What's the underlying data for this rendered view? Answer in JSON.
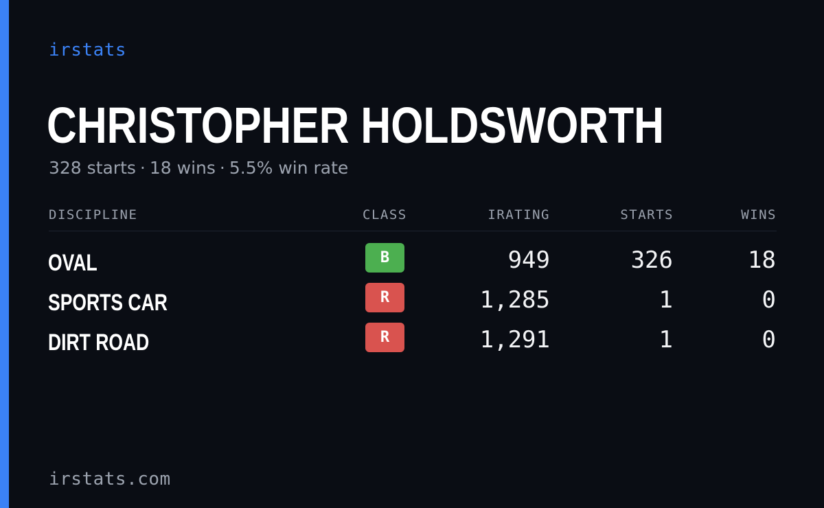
{
  "brand": "irstats",
  "driver": {
    "name": "CHRISTOPHER HOLDSWORTH",
    "starts_text": "328 starts",
    "wins_text": "18 wins",
    "win_rate_text": "5.5% win rate",
    "separator": "·"
  },
  "table": {
    "headers": {
      "discipline": "DISCIPLINE",
      "class": "CLASS",
      "irating": "IRATING",
      "starts": "STARTS",
      "wins": "WINS"
    },
    "rows": [
      {
        "discipline": "OVAL",
        "class": "B",
        "class_color": "#4caf50",
        "irating": "949",
        "starts": "326",
        "wins": "18"
      },
      {
        "discipline": "SPORTS CAR",
        "class": "R",
        "class_color": "#d9534f",
        "irating": "1,285",
        "starts": "1",
        "wins": "0"
      },
      {
        "discipline": "DIRT ROAD",
        "class": "R",
        "class_color": "#d9534f",
        "irating": "1,291",
        "starts": "1",
        "wins": "0"
      }
    ]
  },
  "footer": "irstats.com",
  "colors": {
    "background": "#0a0d14",
    "accent": "#3b82f6",
    "muted_text": "#9ca3af",
    "primary_text": "#ffffff"
  }
}
